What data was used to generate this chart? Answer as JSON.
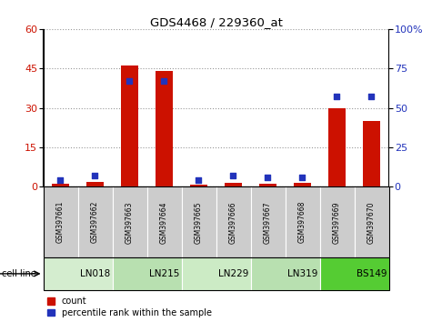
{
  "title": "GDS4468 / 229360_at",
  "samples": [
    "GSM397661",
    "GSM397662",
    "GSM397663",
    "GSM397664",
    "GSM397665",
    "GSM397666",
    "GSM397667",
    "GSM397668",
    "GSM397669",
    "GSM397670"
  ],
  "count": [
    1.0,
    1.8,
    46.0,
    44.0,
    0.8,
    1.5,
    1.2,
    1.5,
    30.0,
    25.0
  ],
  "percentile": [
    4,
    7,
    67,
    67,
    4,
    7,
    6,
    6,
    57,
    57
  ],
  "cell_lines": [
    {
      "label": "LN018",
      "start": 0,
      "end": 2,
      "color": "#d4edcf"
    },
    {
      "label": "LN215",
      "start": 2,
      "end": 4,
      "color": "#b8e0b0"
    },
    {
      "label": "LN229",
      "start": 4,
      "end": 6,
      "color": "#ccebc5"
    },
    {
      "label": "LN319",
      "start": 6,
      "end": 8,
      "color": "#b8e0b0"
    },
    {
      "label": "BS149",
      "start": 8,
      "end": 10,
      "color": "#55cc33"
    }
  ],
  "left_ylim": [
    0,
    60
  ],
  "left_yticks": [
    0,
    15,
    30,
    45,
    60
  ],
  "right_ylim": [
    0,
    100
  ],
  "right_yticks": [
    0,
    25,
    50,
    75,
    100
  ],
  "bar_color": "#cc1100",
  "dot_color": "#2233bb",
  "bar_width": 0.5,
  "dot_size": 22,
  "tick_label_color_left": "#cc1100",
  "tick_label_color_right": "#2233bb",
  "grid_color": "#999999",
  "sample_bg": "#cccccc",
  "cell_line_label": "cell line"
}
